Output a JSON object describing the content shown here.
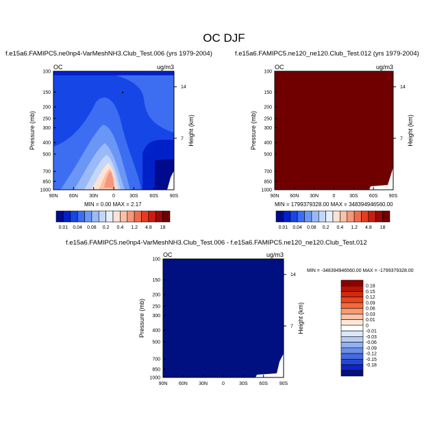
{
  "figure": {
    "title": "OC DJF",
    "colors": {
      "frame": "#000000",
      "background": "#ffffff"
    }
  },
  "chart_data": [
    {
      "type": "heatmap",
      "panel": "top-left",
      "title": "f.e15a6.FAMIPC5.ne0np4-VarMeshNH3.Club_Test.006 (yrs 1979-2004)",
      "left_label": "OC",
      "right_label": "ug/m3",
      "ylabel": "Pressure (mb)",
      "y2label": "Height (km)",
      "y_ticks": [
        "100",
        "150",
        "200",
        "250",
        "300",
        "400",
        "500",
        "700",
        "850",
        "1000"
      ],
      "y2_ticks": [
        "14",
        "7"
      ],
      "x_ticks": [
        "90N",
        "60N",
        "30N",
        "0",
        "30S",
        "60S",
        "90S"
      ],
      "stats": "MIN =   0.00  MAX =   2.17",
      "colorbar": {
        "orientation": "horizontal",
        "labels": [
          "0.01",
          "0.04",
          "0.08",
          "0.2",
          "0.4",
          "1.2",
          "4.8",
          "18"
        ],
        "colors": [
          "#000a8c",
          "#0021c8",
          "#1646e6",
          "#3d6ef2",
          "#6a96f6",
          "#9ab9f8",
          "#c4d7fb",
          "#e6f0fd",
          "#fde3d6",
          "#fbc0a6",
          "#f7967a",
          "#f26a4b",
          "#e63c22",
          "#c81e10",
          "#9a0a04",
          "#700000"
        ]
      }
    },
    {
      "type": "heatmap",
      "panel": "top-right",
      "title": "f.e15a6.FAMIPC5.ne120_ne120.Club_Test.012 (yrs 1979-2004)",
      "left_label": "OC",
      "right_label": "ug/m3",
      "ylabel": "Pressure (mb)",
      "y2label": "Height (km)",
      "y_ticks": [
        "100",
        "150",
        "200",
        "250",
        "300",
        "400",
        "500",
        "700",
        "850",
        "1000"
      ],
      "y2_ticks": [
        "14",
        "7"
      ],
      "x_ticks": [
        "90N",
        "60N",
        "30N",
        "0",
        "30S",
        "60S",
        "90S"
      ],
      "stats": "MIN = 1799379328.00  MAX = 348394946560.00",
      "colorbar": {
        "orientation": "horizontal",
        "labels": [
          "0.01",
          "0.04",
          "0.08",
          "0.2",
          "0.4",
          "1.2",
          "4.8",
          "18"
        ],
        "colors": [
          "#000a8c",
          "#0021c8",
          "#1646e6",
          "#3d6ef2",
          "#6a96f6",
          "#9ab9f8",
          "#c4d7fb",
          "#e6f0fd",
          "#fde3d6",
          "#fbc0a6",
          "#f7967a",
          "#f26a4b",
          "#e63c22",
          "#c81e10",
          "#9a0a04",
          "#700000"
        ]
      }
    },
    {
      "type": "heatmap",
      "panel": "bottom",
      "title": "f.e15a6.FAMIPC5.ne0np4-VarMeshNH3.Club_Test.006 - f.e15a6.FAMIPC5.ne120_ne120.Club_Test.012",
      "left_label": "OC",
      "right_label": "ug/m3",
      "ylabel": "Pressure (mb)",
      "y2label": "Height (km)",
      "y_ticks": [
        "100",
        "150",
        "200",
        "250",
        "300",
        "400",
        "500",
        "700",
        "850",
        "1000"
      ],
      "y2_ticks": [
        "14",
        "7"
      ],
      "x_ticks": [
        "90N",
        "60N",
        "30N",
        "0",
        "30S",
        "60S",
        "90S"
      ],
      "stats": "MIN = -348394946560.00  MAX = -1799379328.00",
      "colorbar": {
        "orientation": "vertical",
        "labels": [
          "0.18",
          "0.15",
          "0.12",
          "0.09",
          "0.06",
          "0.03",
          "0.01",
          "0",
          "-0.01",
          "-0.03",
          "-0.06",
          "-0.09",
          "-0.12",
          "-0.15",
          "-0.18"
        ],
        "colors": [
          "#8c0000",
          "#b41404",
          "#d22a10",
          "#e8461e",
          "#f46a3c",
          "#f89a72",
          "#fbc4a8",
          "#fde6d8",
          "#ffffff",
          "#dce8fa",
          "#b8cdf5",
          "#93b0ef",
          "#6c8ee8",
          "#456ae0",
          "#2447d6",
          "#0d24c4",
          "#001080"
        ]
      }
    }
  ]
}
